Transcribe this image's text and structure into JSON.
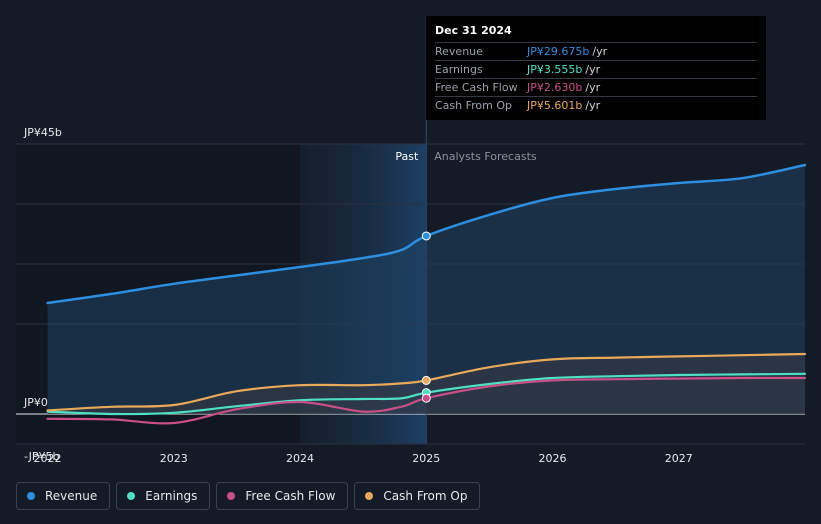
{
  "chart_data": {
    "type": "line",
    "title": "",
    "x": [
      2022,
      2022.5,
      2023,
      2023.5,
      2024,
      2024.5,
      2025,
      2025.5,
      2026,
      2026.5,
      2027,
      2027.5,
      2028
    ],
    "x_tick_labels": [
      "2022",
      "2023",
      "2024",
      "2025",
      "2026",
      "2027"
    ],
    "x_ticks": [
      2022,
      2023,
      2024,
      2025,
      2026,
      2027
    ],
    "xlim": [
      2021.75,
      2028
    ],
    "ylim": [
      -5,
      45
    ],
    "y_tick_labels": [
      "JP¥45b",
      "JP¥0",
      "-JP¥5b"
    ],
    "y_tick_values": [
      45,
      0,
      -5
    ],
    "divider_x": 2025,
    "shade_start_x": 2024,
    "past_label": "Past",
    "forecast_label": "Analysts Forecasts",
    "series": [
      {
        "name": "Revenue",
        "color": "#2d8fe0",
        "x": [
          2022,
          2022.5,
          2023,
          2023.5,
          2024,
          2024.5,
          2024.8,
          2025,
          2025.5,
          2026,
          2026.5,
          2027,
          2027.5,
          2028
        ],
        "values": [
          18.5,
          20.0,
          21.7,
          23.1,
          24.5,
          26.0,
          27.3,
          29.675,
          33.2,
          36.0,
          37.5,
          38.5,
          39.3,
          41.5
        ]
      },
      {
        "name": "Earnings",
        "color": "#4fe0c3",
        "x": [
          2022,
          2022.5,
          2023,
          2023.5,
          2024,
          2024.5,
          2024.8,
          2025,
          2025.5,
          2026,
          2026.5,
          2027,
          2027.5,
          2028
        ],
        "values": [
          0.4,
          0.0,
          0.2,
          1.3,
          2.3,
          2.5,
          2.6,
          3.555,
          5.0,
          6.0,
          6.3,
          6.5,
          6.6,
          6.7
        ]
      },
      {
        "name": "Free Cash Flow",
        "color": "#c94f86",
        "x": [
          2022,
          2022.5,
          2023,
          2023.5,
          2024,
          2024.5,
          2024.8,
          2025,
          2025.5,
          2026,
          2026.5,
          2027,
          2027.5,
          2028
        ],
        "values": [
          -0.8,
          -0.9,
          -1.5,
          0.8,
          2.0,
          0.4,
          1.2,
          2.63,
          4.6,
          5.6,
          5.8,
          5.9,
          6.0,
          6.0
        ]
      },
      {
        "name": "Cash From Op",
        "color": "#e9a95a",
        "x": [
          2022,
          2022.5,
          2023,
          2023.5,
          2024,
          2024.5,
          2024.8,
          2025,
          2025.5,
          2026,
          2026.5,
          2027,
          2027.5,
          2028
        ],
        "values": [
          0.6,
          1.2,
          1.5,
          3.8,
          4.8,
          4.8,
          5.1,
          5.601,
          7.8,
          9.1,
          9.4,
          9.6,
          9.8,
          10.0
        ]
      }
    ]
  },
  "tooltip": {
    "date": "Dec 31 2024",
    "rows": [
      {
        "label": "Revenue",
        "value": "JP¥29.675b",
        "unit": "/yr"
      },
      {
        "label": "Earnings",
        "value": "JP¥3.555b",
        "unit": "/yr"
      },
      {
        "label": "Free Cash Flow",
        "value": "JP¥2.630b",
        "unit": "/yr"
      },
      {
        "label": "Cash From Op",
        "value": "JP¥5.601b",
        "unit": "/yr"
      }
    ]
  },
  "legend": [
    {
      "label": "Revenue",
      "color": "#2d8fe0"
    },
    {
      "label": "Earnings",
      "color": "#4fe0c3"
    },
    {
      "label": "Free Cash Flow",
      "color": "#c94f86"
    },
    {
      "label": "Cash From Op",
      "color": "#e9a95a"
    }
  ]
}
